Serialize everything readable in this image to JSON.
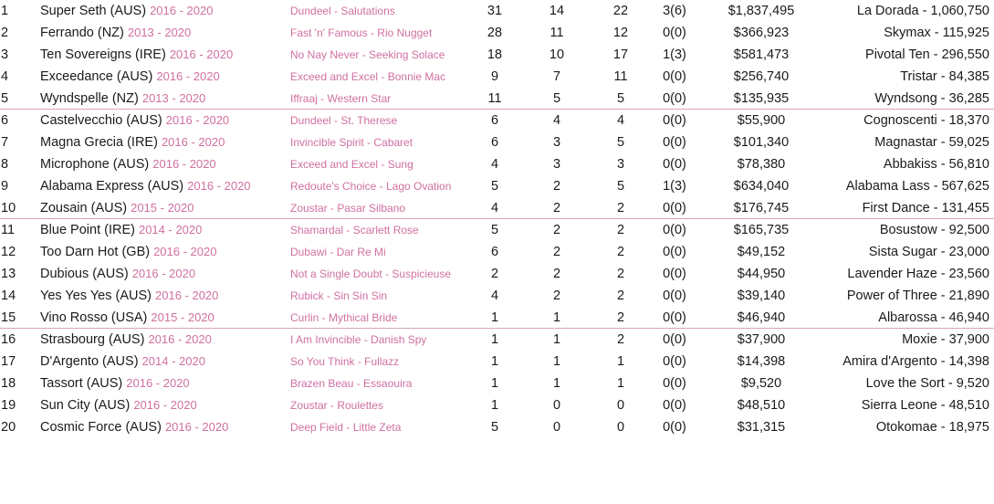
{
  "rows": [
    {
      "rank": "1",
      "horse": "Super Seth (AUS)",
      "years": "2016 - 2020",
      "pedigree": "Dundeel - Salutations",
      "runners": "31",
      "winners": "14",
      "wins": "22",
      "sw": "3(6)",
      "earnings": "$1,837,495",
      "best": "La Dorada - 1,060,750"
    },
    {
      "rank": "2",
      "horse": "Ferrando (NZ)",
      "years": "2013 - 2020",
      "pedigree": "Fast 'n' Famous - Rio Nugget",
      "runners": "28",
      "winners": "11",
      "wins": "12",
      "sw": "0(0)",
      "earnings": "$366,923",
      "best": "Skymax - 115,925"
    },
    {
      "rank": "3",
      "horse": "Ten Sovereigns (IRE)",
      "years": "2016 - 2020",
      "pedigree": "No Nay Never - Seeking Solace",
      "runners": "18",
      "winners": "10",
      "wins": "17",
      "sw": "1(3)",
      "earnings": "$581,473",
      "best": "Pivotal Ten - 296,550"
    },
    {
      "rank": "4",
      "horse": "Exceedance (AUS)",
      "years": "2016 - 2020",
      "pedigree": "Exceed and Excel - Bonnie Mac",
      "runners": "9",
      "winners": "7",
      "wins": "11",
      "sw": "0(0)",
      "earnings": "$256,740",
      "best": "Tristar - 84,385"
    },
    {
      "rank": "5",
      "horse": "Wyndspelle (NZ)",
      "years": "2013 - 2020",
      "pedigree": "Iffraaj - Western Star",
      "runners": "11",
      "winners": "5",
      "wins": "5",
      "sw": "0(0)",
      "earnings": "$135,935",
      "best": "Wyndsong - 36,285"
    },
    {
      "rank": "6",
      "horse": "Castelvecchio (AUS)",
      "years": "2016 - 2020",
      "pedigree": "Dundeel - St. Therese",
      "runners": "6",
      "winners": "4",
      "wins": "4",
      "sw": "0(0)",
      "earnings": "$55,900",
      "best": "Cognoscenti - 18,370"
    },
    {
      "rank": "7",
      "horse": "Magna Grecia (IRE)",
      "years": "2016 - 2020",
      "pedigree": "Invincible Spirit - Cabaret",
      "runners": "6",
      "winners": "3",
      "wins": "5",
      "sw": "0(0)",
      "earnings": "$101,340",
      "best": "Magnastar - 59,025"
    },
    {
      "rank": "8",
      "horse": "Microphone (AUS)",
      "years": "2016 - 2020",
      "pedigree": "Exceed and Excel - Sung",
      "runners": "4",
      "winners": "3",
      "wins": "3",
      "sw": "0(0)",
      "earnings": "$78,380",
      "best": "Abbakiss - 56,810"
    },
    {
      "rank": "9",
      "horse": "Alabama Express (AUS)",
      "years": "2016 - 2020",
      "pedigree": "Redoute's Choice - Lago Ovation",
      "runners": "5",
      "winners": "2",
      "wins": "5",
      "sw": "1(3)",
      "earnings": "$634,040",
      "best": "Alabama Lass - 567,625"
    },
    {
      "rank": "10",
      "horse": "Zousain (AUS)",
      "years": "2015 - 2020",
      "pedigree": "Zoustar - Pasar Silbano",
      "runners": "4",
      "winners": "2",
      "wins": "2",
      "sw": "0(0)",
      "earnings": "$176,745",
      "best": "First Dance - 131,455"
    },
    {
      "rank": "11",
      "horse": "Blue Point (IRE)",
      "years": "2014 - 2020",
      "pedigree": "Shamardal - Scarlett Rose",
      "runners": "5",
      "winners": "2",
      "wins": "2",
      "sw": "0(0)",
      "earnings": "$165,735",
      "best": "Bosustow - 92,500"
    },
    {
      "rank": "12",
      "horse": "Too Darn Hot (GB)",
      "years": "2016 - 2020",
      "pedigree": "Dubawi - Dar Re Mi",
      "runners": "6",
      "winners": "2",
      "wins": "2",
      "sw": "0(0)",
      "earnings": "$49,152",
      "best": "Sista Sugar - 23,000"
    },
    {
      "rank": "13",
      "horse": "Dubious (AUS)",
      "years": "2016 - 2020",
      "pedigree": "Not a Single Doubt - Suspicieuse",
      "runners": "2",
      "winners": "2",
      "wins": "2",
      "sw": "0(0)",
      "earnings": "$44,950",
      "best": "Lavender Haze - 23,560"
    },
    {
      "rank": "14",
      "horse": "Yes Yes Yes (AUS)",
      "years": "2016 - 2020",
      "pedigree": "Rubick - Sin Sin Sin",
      "runners": "4",
      "winners": "2",
      "wins": "2",
      "sw": "0(0)",
      "earnings": "$39,140",
      "best": "Power of Three - 21,890"
    },
    {
      "rank": "15",
      "horse": "Vino Rosso (USA)",
      "years": "2015 - 2020",
      "pedigree": "Curlin - Mythical Bride",
      "runners": "1",
      "winners": "1",
      "wins": "2",
      "sw": "0(0)",
      "earnings": "$46,940",
      "best": "Albarossa - 46,940"
    },
    {
      "rank": "16",
      "horse": "Strasbourg (AUS)",
      "years": "2016 - 2020",
      "pedigree": "I Am Invincible - Danish Spy",
      "runners": "1",
      "winners": "1",
      "wins": "2",
      "sw": "0(0)",
      "earnings": "$37,900",
      "best": "Moxie - 37,900"
    },
    {
      "rank": "17",
      "horse": "D'Argento (AUS)",
      "years": "2014 - 2020",
      "pedigree": "So You Think - Fullazz",
      "runners": "1",
      "winners": "1",
      "wins": "1",
      "sw": "0(0)",
      "earnings": "$14,398",
      "best": "Amira d'Argento - 14,398"
    },
    {
      "rank": "18",
      "horse": "Tassort (AUS)",
      "years": "2016 - 2020",
      "pedigree": "Brazen Beau - Essaouira",
      "runners": "1",
      "winners": "1",
      "wins": "1",
      "sw": "0(0)",
      "earnings": "$9,520",
      "best": "Love the Sort - 9,520"
    },
    {
      "rank": "19",
      "horse": "Sun City (AUS)",
      "years": "2016 - 2020",
      "pedigree": "Zoustar - Roulettes",
      "runners": "1",
      "winners": "0",
      "wins": "0",
      "sw": "0(0)",
      "earnings": "$48,510",
      "best": "Sierra Leone - 48,510"
    },
    {
      "rank": "20",
      "horse": "Cosmic Force (AUS)",
      "years": "2016 - 2020",
      "pedigree": "Deep Field - Little Zeta",
      "runners": "5",
      "winners": "0",
      "wins": "0",
      "sw": "0(0)",
      "earnings": "$31,315",
      "best": "Otokomae - 18,975"
    }
  ],
  "colors": {
    "text": "#1a1a1a",
    "accent_pink": "#d070a0",
    "separator": "#d9a3bf"
  }
}
